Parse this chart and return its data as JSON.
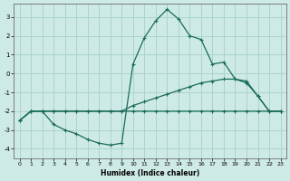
{
  "xlabel": "Humidex (Indice chaleur)",
  "background_color": "#ceeae6",
  "grid_color": "#aad4cc",
  "line_color": "#1a6b5a",
  "xlim": [
    -0.5,
    23.5
  ],
  "ylim": [
    -4.5,
    3.7
  ],
  "yticks": [
    -4,
    -3,
    -2,
    -1,
    0,
    1,
    2,
    3
  ],
  "xticks": [
    0,
    1,
    2,
    3,
    4,
    5,
    6,
    7,
    8,
    9,
    10,
    11,
    12,
    13,
    14,
    15,
    16,
    17,
    18,
    19,
    20,
    21,
    22,
    23
  ],
  "line1_x": [
    0,
    1,
    2,
    3,
    4,
    5,
    6,
    7,
    8,
    9,
    10,
    11,
    12,
    13,
    14,
    15,
    16,
    17,
    18,
    19,
    20,
    21,
    22,
    23
  ],
  "line1_y": [
    -2.5,
    -2.0,
    -2.0,
    -2.0,
    -2.0,
    -2.0,
    -2.0,
    -2.0,
    -2.0,
    -2.0,
    -2.0,
    -2.0,
    -2.0,
    -2.0,
    -2.0,
    -2.0,
    -2.0,
    -2.0,
    -2.0,
    -2.0,
    -2.0,
    -2.0,
    -2.0,
    -2.0
  ],
  "line2_x": [
    0,
    1,
    2,
    3,
    4,
    5,
    6,
    7,
    8,
    9,
    10,
    11,
    12,
    13,
    14,
    15,
    16,
    17,
    18,
    19,
    20,
    21,
    22,
    23
  ],
  "line2_y": [
    -2.5,
    -2.0,
    -2.0,
    -2.0,
    -2.0,
    -2.0,
    -2.0,
    -2.0,
    -2.0,
    -2.0,
    -1.7,
    -1.5,
    -1.3,
    -1.1,
    -0.9,
    -0.7,
    -0.5,
    -0.4,
    -0.3,
    -0.3,
    -0.5,
    -1.2,
    -2.0,
    -2.0
  ],
  "line3_x": [
    0,
    1,
    2,
    3,
    4,
    5,
    6,
    7,
    8,
    9,
    10,
    11,
    12,
    13,
    14,
    15,
    16,
    17,
    18,
    19,
    20,
    21,
    22,
    23
  ],
  "line3_y": [
    -2.5,
    -2.0,
    -2.0,
    -2.7,
    -3.0,
    -3.2,
    -3.5,
    -3.7,
    -3.8,
    -3.7,
    0.5,
    1.9,
    2.8,
    3.4,
    2.9,
    2.0,
    1.8,
    0.5,
    0.6,
    -0.3,
    -0.4,
    -1.2,
    -2.0,
    -2.0
  ]
}
